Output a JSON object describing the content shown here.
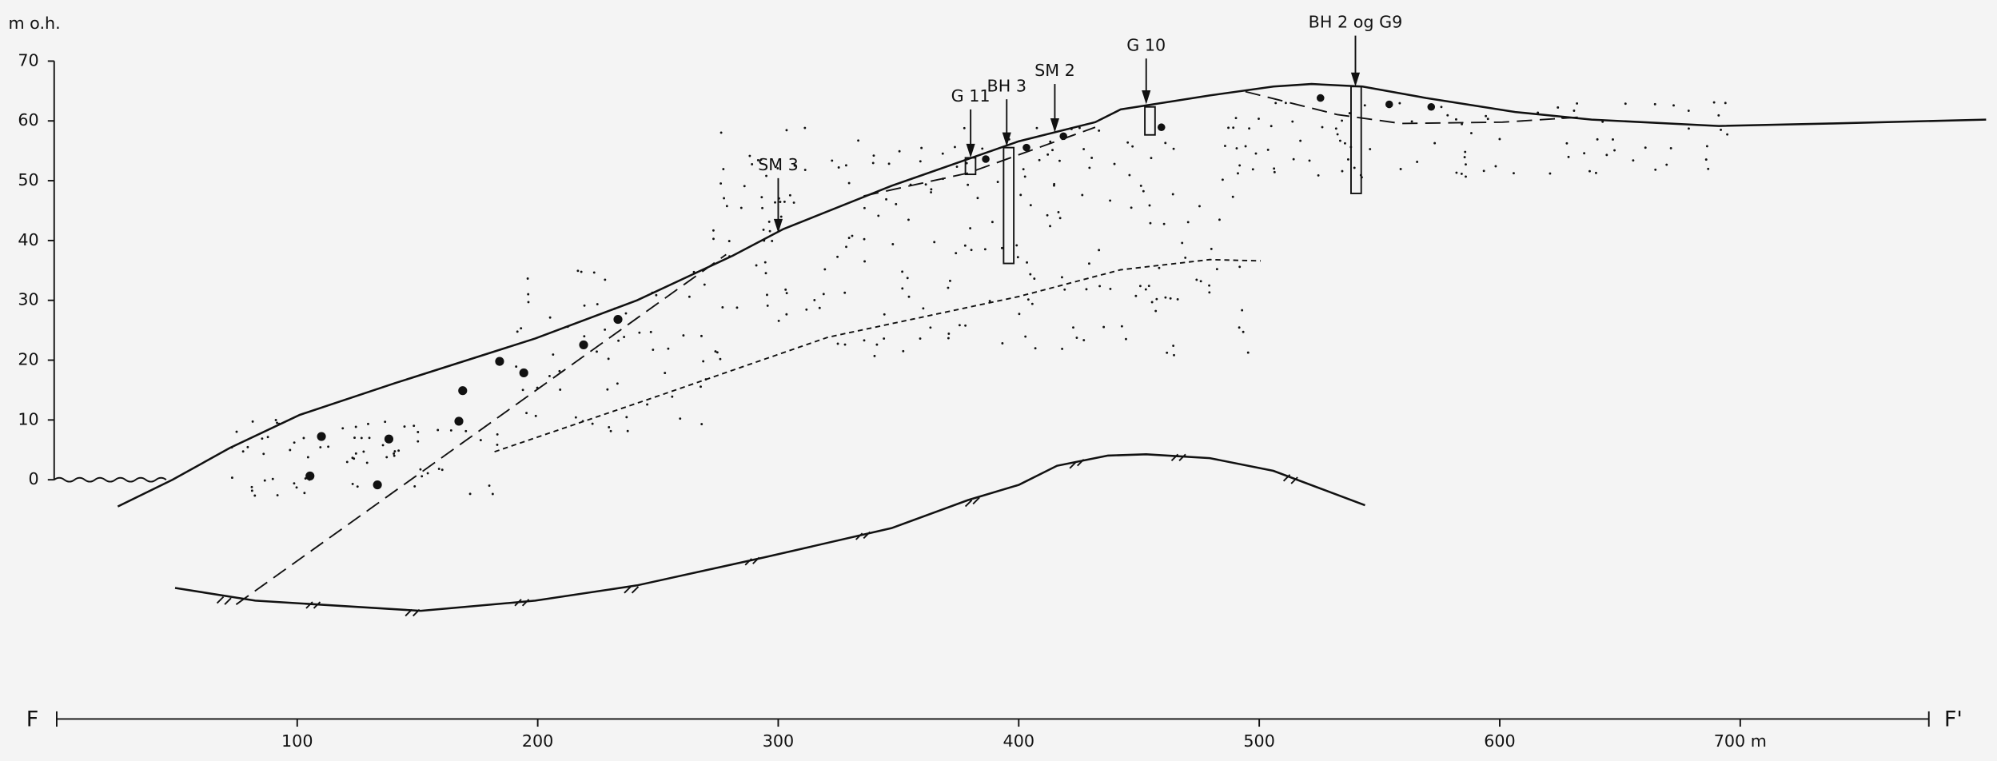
{
  "y_axis": {
    "label": "m o.h.",
    "lim": [
      0,
      70
    ],
    "ticks": [
      0,
      10,
      20,
      30,
      40,
      50,
      60,
      70
    ]
  },
  "x_axis": {
    "start_label": "F",
    "end_label": "F'",
    "lim": [
      0,
      780
    ],
    "ticks": [
      100,
      200,
      300,
      400,
      500,
      600,
      {
        "value": 700,
        "label": "700 m"
      }
    ]
  },
  "boreholes": [
    {
      "label": "SM 3",
      "x": 300
    },
    {
      "label": "G 11",
      "x": 380
    },
    {
      "label": "BH 3",
      "x": 395
    },
    {
      "label": "SM 2",
      "x": 415
    },
    {
      "label": "G 10",
      "x": 453
    },
    {
      "label": "BH 2 og G9",
      "x": 540
    }
  ]
}
